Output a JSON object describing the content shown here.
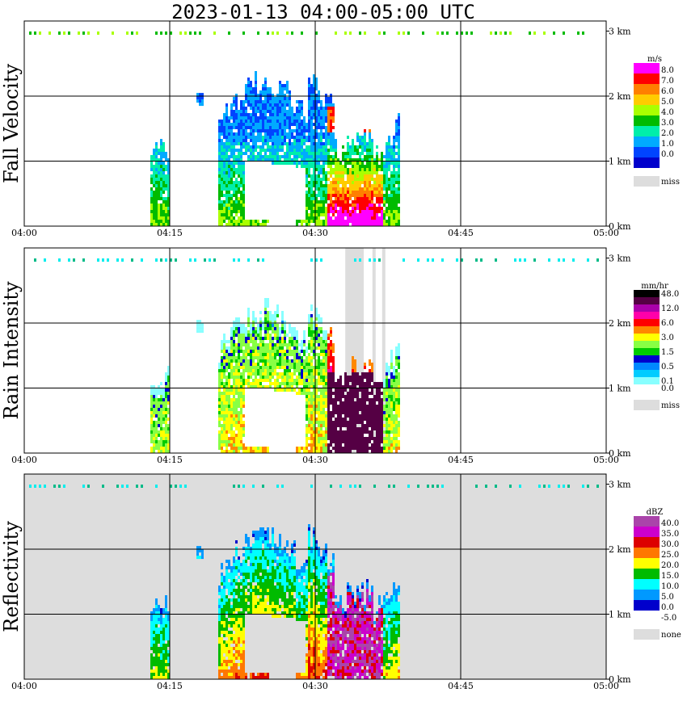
{
  "title": "2023-01-13   04:00-05:00 UTC",
  "x_ticks": [
    "04:00",
    "04:15",
    "04:30",
    "04:45",
    "05:00"
  ],
  "y_ticks": [
    "0 km",
    "1 km",
    "2 km",
    "3 km"
  ],
  "panels": [
    {
      "name": "fall-velocity",
      "ylabel": "Fall Velocity",
      "background": "#ffffff",
      "legend": {
        "unit": "m/s",
        "entries": [
          {
            "label": "8.0",
            "color": "#ff00ff"
          },
          {
            "label": "7.0",
            "color": "#ff0000"
          },
          {
            "label": "6.0",
            "color": "#ff7f00"
          },
          {
            "label": "5.0",
            "color": "#ffcc00"
          },
          {
            "label": "4.0",
            "color": "#aaff00"
          },
          {
            "label": "3.0",
            "color": "#00bb00"
          },
          {
            "label": "2.0",
            "color": "#00eeaa"
          },
          {
            "label": "1.0",
            "color": "#00aaff"
          },
          {
            "label": "0.0",
            "color": "#0044ff"
          },
          {
            "label": "",
            "color": "#0000cc"
          }
        ],
        "missing_label": "miss",
        "missing_color": "#dddddd"
      }
    },
    {
      "name": "rain-intensity",
      "ylabel": "Rain Intensity",
      "background": "#ffffff",
      "legend": {
        "unit": "mm/hr",
        "entries": [
          {
            "label": "48.0",
            "color": "#000000"
          },
          {
            "label": "",
            "color": "#550044"
          },
          {
            "label": "12.0",
            "color": "#aa00aa"
          },
          {
            "label": "",
            "color": "#ff00aa"
          },
          {
            "label": "6.0",
            "color": "#ff0000"
          },
          {
            "label": "",
            "color": "#ff8800"
          },
          {
            "label": "3.0",
            "color": "#ffff00"
          },
          {
            "label": "",
            "color": "#88ff44"
          },
          {
            "label": "1.5",
            "color": "#00cc00"
          },
          {
            "label": "",
            "color": "#0000cc"
          },
          {
            "label": "0.5",
            "color": "#0088ff"
          },
          {
            "label": "",
            "color": "#00ccff"
          },
          {
            "label": "0.1",
            "color": "#88ffff"
          },
          {
            "label": "0.0",
            "color": "#ffffff"
          }
        ],
        "missing_label": "miss",
        "missing_color": "#dddddd"
      }
    },
    {
      "name": "reflectivity",
      "ylabel": "Reflectivity",
      "background": "#dddddd",
      "legend": {
        "unit": "dBZ",
        "entries": [
          {
            "label": "40.0",
            "color": "#aa44aa"
          },
          {
            "label": "35.0",
            "color": "#cc00cc"
          },
          {
            "label": "30.0",
            "color": "#dd0000"
          },
          {
            "label": "25.0",
            "color": "#ff7700"
          },
          {
            "label": "20.0",
            "color": "#ffff00"
          },
          {
            "label": "15.0",
            "color": "#00bb00"
          },
          {
            "label": "10.0",
            "color": "#00ffff"
          },
          {
            "label": "5.0",
            "color": "#0099ff"
          },
          {
            "label": "0.0",
            "color": "#0000cc"
          },
          {
            "label": "-5.0",
            "color": "#ffffff"
          }
        ],
        "missing_label": "none",
        "missing_color": "#dddddd"
      }
    }
  ],
  "chart_data": {
    "type": "heatmap",
    "title": "2023-01-13   04:00-05:00 UTC",
    "xlim": [
      "04:00",
      "05:00"
    ],
    "ylim_km": [
      0,
      3.2
    ],
    "grid": true,
    "legend_placement": "right",
    "series": [
      {
        "name": "Fall Velocity",
        "unit": "m/s"
      },
      {
        "name": "Rain Intensity",
        "unit": "mm/hr"
      },
      {
        "name": "Reflectivity",
        "unit": "dBZ"
      }
    ]
  }
}
